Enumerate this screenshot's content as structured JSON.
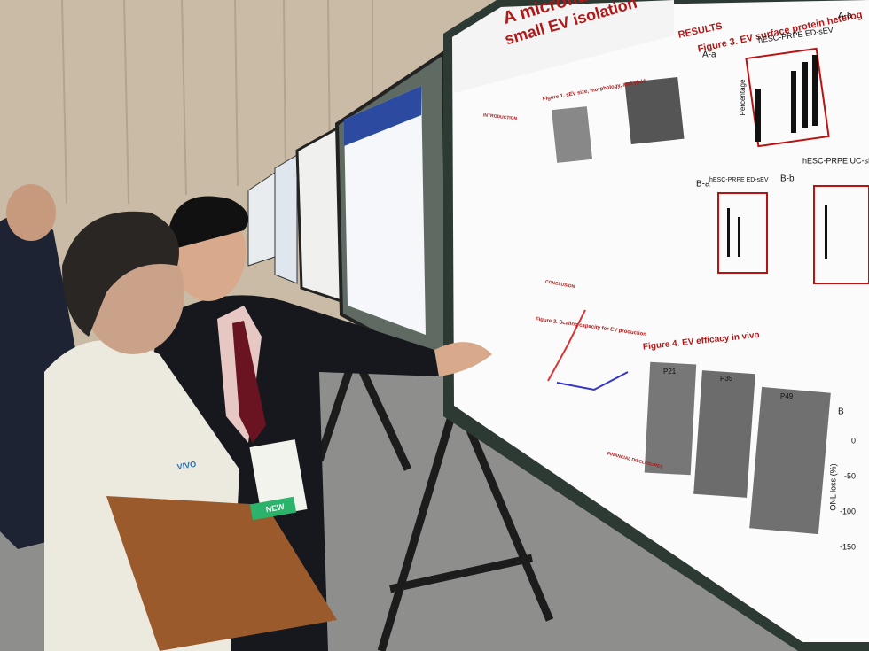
{
  "poster": {
    "title_lines": [
      "A microfluidic",
      "small EV isolation"
    ],
    "section": "RESULTS",
    "figure1": "Figure 1. sEV size, morphology, and yield",
    "figure2": "Figure 2. Scaling capacity for EV production",
    "figure3": "Figure 3. EV surface protein heterog",
    "figure4": "Figure 4. EV efficacy in vivo",
    "panels": [
      "A-a",
      "A-b",
      "B-a",
      "B-b"
    ],
    "subtitles": [
      "hESC-PRPE ED-sEV",
      "hESC-PRPE ED-sEV",
      "hESC-PRPE UC-sE"
    ],
    "y_label": "Percentage",
    "timepoints": [
      "P21",
      "P35",
      "P49"
    ],
    "panel_b": "B",
    "onl_label": "ONL loss (%)",
    "onl_ticks": [
      0,
      -50,
      -100,
      -150
    ],
    "left_sections": [
      "INTRODUCTION",
      "CONCLUSION",
      "FINANCIAL DISCLOSURES"
    ]
  },
  "badge": {
    "event": "VIVO",
    "tag": "NEW"
  }
}
